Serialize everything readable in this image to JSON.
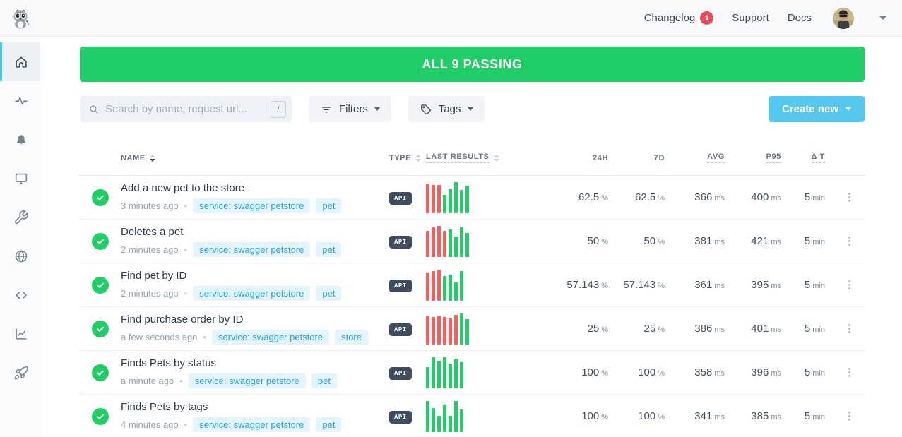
{
  "topbar": {
    "nav": [
      {
        "label": "Changelog",
        "badge": "1"
      },
      {
        "label": "Support"
      },
      {
        "label": "Docs"
      }
    ]
  },
  "sidebar": {
    "items": [
      {
        "icon": "home",
        "active": true
      },
      {
        "icon": "activity",
        "active": false
      },
      {
        "icon": "bell",
        "active": false
      },
      {
        "icon": "monitor",
        "active": false
      },
      {
        "icon": "wrench",
        "active": false
      },
      {
        "icon": "globe",
        "active": false
      },
      {
        "icon": "code",
        "active": false
      },
      {
        "icon": "chart",
        "active": false
      },
      {
        "icon": "rocket",
        "active": false
      }
    ]
  },
  "banner": {
    "text": "ALL 9 PASSING"
  },
  "toolbar": {
    "search_placeholder": "Search by name, request url...",
    "search_shortcut": "/",
    "filters_label": "Filters",
    "tags_label": "Tags",
    "create_label": "Create new"
  },
  "table": {
    "headers": {
      "name": "NAME",
      "type": "TYPE",
      "results": "LAST RESULTS",
      "h24": "24H",
      "d7": "7D",
      "avg": "AVG",
      "p95": "P95",
      "dt": "Δ T"
    },
    "rows": [
      {
        "name": "Add a new pet to the store",
        "time": "3 minutes ago",
        "tags": [
          "service: swagger petstore",
          "pet"
        ],
        "type": "API",
        "results": [
          {
            "s": "fail",
            "h": 0.95
          },
          {
            "s": "fail",
            "h": 0.92
          },
          {
            "s": "fail",
            "h": 0.92
          },
          {
            "s": "pass",
            "h": 0.58
          },
          {
            "s": "pass",
            "h": 0.78
          },
          {
            "s": "pass",
            "h": 1
          },
          {
            "s": "pass",
            "h": 0.75
          },
          {
            "s": "pass",
            "h": 0.88
          }
        ],
        "h24": "62.5",
        "h24u": "%",
        "d7": "62.5",
        "d7u": "%",
        "avg": "366",
        "avgu": "ms",
        "p95": "400",
        "p95u": "ms",
        "dt": "5",
        "dtu": "min"
      },
      {
        "name": "Deletes a pet",
        "time": "2 minutes ago",
        "tags": [
          "service: swagger petstore",
          "pet"
        ],
        "type": "API",
        "results": [
          {
            "s": "fail",
            "h": 0.85
          },
          {
            "s": "fail",
            "h": 0.95
          },
          {
            "s": "fail",
            "h": 1
          },
          {
            "s": "fail",
            "h": 0.85
          },
          {
            "s": "pass",
            "h": 0.88
          },
          {
            "s": "pass",
            "h": 0.65
          },
          {
            "s": "pass",
            "h": 0.95
          },
          {
            "s": "pass",
            "h": 0.78
          }
        ],
        "h24": "50",
        "h24u": "%",
        "d7": "50",
        "d7u": "%",
        "avg": "381",
        "avgu": "ms",
        "p95": "421",
        "p95u": "ms",
        "dt": "5",
        "dtu": "min"
      },
      {
        "name": "Find pet by ID",
        "time": "2 minutes ago",
        "tags": [
          "service: swagger petstore",
          "pet"
        ],
        "type": "API",
        "results": [
          {
            "s": "fail",
            "h": 0.9
          },
          {
            "s": "fail",
            "h": 0.95
          },
          {
            "s": "fail",
            "h": 1
          },
          {
            "s": "pass",
            "h": 0.8
          },
          {
            "s": "pass",
            "h": 0.85
          },
          {
            "s": "pass",
            "h": 0.6
          },
          {
            "s": "pass",
            "h": 0.95
          }
        ],
        "h24": "57.143",
        "h24u": "%",
        "d7": "57.143",
        "d7u": "%",
        "avg": "361",
        "avgu": "ms",
        "p95": "395",
        "p95u": "ms",
        "dt": "5",
        "dtu": "min"
      },
      {
        "name": "Find purchase order by ID",
        "time": "a few seconds ago",
        "tags": [
          "service: swagger petstore",
          "store"
        ],
        "type": "API",
        "results": [
          {
            "s": "fail",
            "h": 0.9
          },
          {
            "s": "fail",
            "h": 0.88
          },
          {
            "s": "fail",
            "h": 0.9
          },
          {
            "s": "fail",
            "h": 0.88
          },
          {
            "s": "fail",
            "h": 0.85
          },
          {
            "s": "fail",
            "h": 0.95
          },
          {
            "s": "pass",
            "h": 1
          },
          {
            "s": "pass",
            "h": 0.82
          }
        ],
        "h24": "25",
        "h24u": "%",
        "d7": "25",
        "d7u": "%",
        "avg": "386",
        "avgu": "ms",
        "p95": "401",
        "p95u": "ms",
        "dt": "5",
        "dtu": "min"
      },
      {
        "name": "Finds Pets by status",
        "time": "a minute ago",
        "tags": [
          "service: swagger petstore",
          "pet"
        ],
        "type": "API",
        "results": [
          {
            "s": "pass",
            "h": 0.68
          },
          {
            "s": "pass",
            "h": 1
          },
          {
            "s": "pass",
            "h": 0.88
          },
          {
            "s": "pass",
            "h": 1
          },
          {
            "s": "pass",
            "h": 0.8
          },
          {
            "s": "pass",
            "h": 0.95
          },
          {
            "s": "pass",
            "h": 0.85
          }
        ],
        "h24": "100",
        "h24u": "%",
        "d7": "100",
        "d7u": "%",
        "avg": "358",
        "avgu": "ms",
        "p95": "396",
        "p95u": "ms",
        "dt": "5",
        "dtu": "min"
      },
      {
        "name": "Finds Pets by tags",
        "time": "4 minutes ago",
        "tags": [
          "service: swagger petstore",
          "pet"
        ],
        "type": "API",
        "results": [
          {
            "s": "pass",
            "h": 1
          },
          {
            "s": "pass",
            "h": 0.78
          },
          {
            "s": "pass",
            "h": 0.52
          },
          {
            "s": "pass",
            "h": 0.88
          },
          {
            "s": "pass",
            "h": 0.52
          },
          {
            "s": "pass",
            "h": 1
          },
          {
            "s": "pass",
            "h": 0.72
          }
        ],
        "h24": "100",
        "h24u": "%",
        "d7": "100",
        "d7u": "%",
        "avg": "341",
        "avgu": "ms",
        "p95": "385",
        "p95u": "ms",
        "dt": "5",
        "dtu": "min"
      }
    ]
  },
  "colors": {
    "pass_green": "#20cd66",
    "fail_red": "#fb5b5b",
    "accent_blue": "#54c8ee",
    "tag_blue": "#2ba3d9",
    "badge_red": "#e74c5b",
    "active_cyan": "#4cc6ea"
  }
}
